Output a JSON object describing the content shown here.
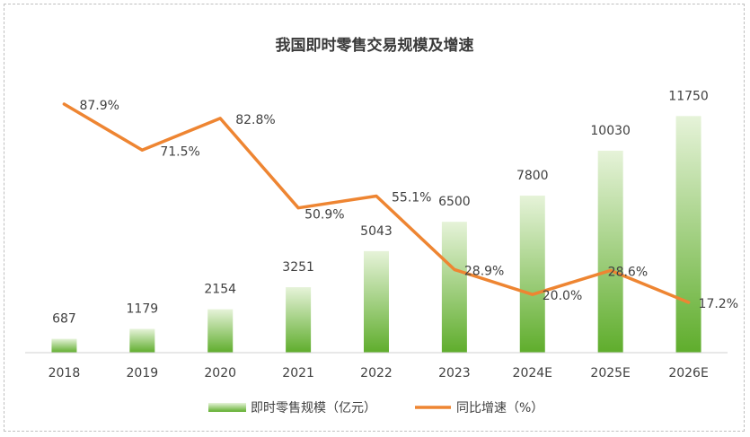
{
  "chart_data": {
    "type": "bar",
    "title": "我国即时零售交易规模及增速",
    "categories": [
      "2018",
      "2019",
      "2020",
      "2021",
      "2022",
      "2023",
      "2024E",
      "2025E",
      "2026E"
    ],
    "series": [
      {
        "name": "即时零售规模（亿元）",
        "type": "bar",
        "axis": "left",
        "values": [
          687,
          1179,
          2154,
          3251,
          5043,
          6500,
          7800,
          10030,
          11750
        ],
        "labels": [
          "687",
          "1179",
          "2154",
          "3251",
          "5043",
          "6500",
          "7800",
          "10030",
          "11750"
        ]
      },
      {
        "name": "同比增速（%）",
        "type": "line",
        "axis": "right",
        "values": [
          87.9,
          71.5,
          82.8,
          50.9,
          55.1,
          28.9,
          20.0,
          28.6,
          17.2
        ],
        "labels": [
          "87.9%",
          "71.5%",
          "82.8%",
          "50.9%",
          "55.1%",
          "28.9%",
          "20.0%",
          "28.6%",
          "17.2%"
        ]
      }
    ],
    "ylim": [
      0,
      14000
    ],
    "y2lim": [
      0,
      100
    ],
    "grid": false,
    "legend": "bottom",
    "colors": {
      "bar_top": "#e6f3d9",
      "bar_bottom": "#5fad2c",
      "line": "#ee8532",
      "axis": "#d0d0d0"
    }
  }
}
